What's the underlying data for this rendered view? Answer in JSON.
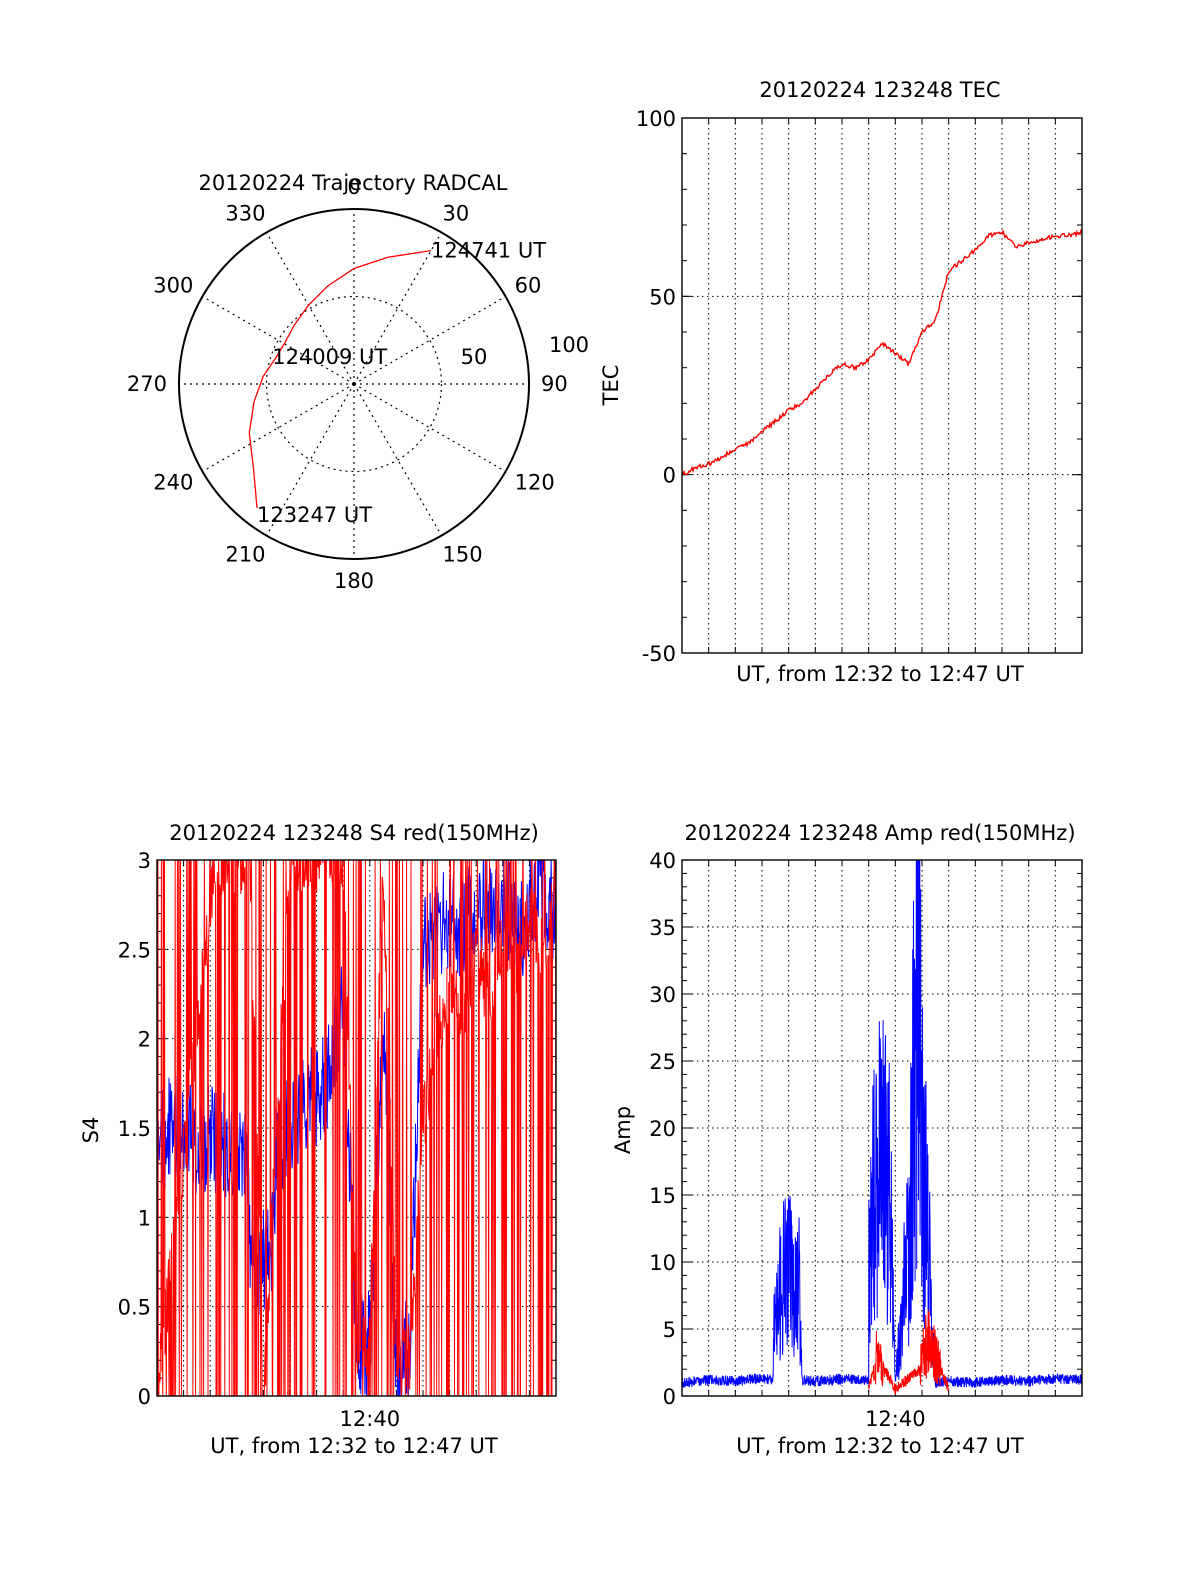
{
  "chart_data": [
    {
      "type": "polar",
      "title": "20120224 Trajectory RADCAL",
      "azimuth_labels": [
        "0",
        "30",
        "60",
        "90",
        "120",
        "150",
        "180",
        "210",
        "240",
        "270",
        "300",
        "330"
      ],
      "elevation_labels": [
        "50",
        "100"
      ],
      "rlim": [
        0,
        100
      ],
      "grid": true,
      "colors": {
        "track": "#ff0000"
      },
      "annotations": [
        {
          "text": "124741 UT",
          "az": 30,
          "r": 88
        },
        {
          "text": "124009 UT",
          "az": 289,
          "r": 47
        },
        {
          "text": "123247 UT",
          "az": 218,
          "r": 90
        }
      ],
      "track": [
        [
          30,
          88
        ],
        [
          15,
          75
        ],
        [
          0,
          66
        ],
        [
          -15,
          58
        ],
        [
          -30,
          52
        ],
        [
          -45,
          48
        ],
        [
          -60,
          46
        ],
        [
          -71,
          47
        ],
        [
          -85,
          52
        ],
        [
          -100,
          58
        ],
        [
          -115,
          66
        ],
        [
          -130,
          75
        ],
        [
          -142,
          90
        ]
      ]
    },
    {
      "type": "line",
      "title": "20120224 123248 TEC",
      "xlabel": "UT, from 12:32 to 12:47 UT",
      "ylabel": "TEC",
      "xlim": [
        0,
        15
      ],
      "ylim": [
        -50,
        100
      ],
      "yticks": [
        "-50",
        "0",
        "50",
        "100"
      ],
      "x_unit": "minutes after 12:32",
      "grid": true,
      "colors": {
        "tec": "#ff0000"
      },
      "series": [
        {
          "name": "",
          "x": [
            0,
            0.5,
            1,
            1.5,
            2,
            2.5,
            3,
            3.5,
            4,
            4.5,
            5,
            5.5,
            6,
            6.5,
            7,
            7.5,
            8,
            8.5,
            9,
            9.5,
            10,
            10.5,
            11,
            11.5,
            12,
            12.5,
            13,
            13.5,
            14,
            14.5,
            15
          ],
          "values": [
            0,
            2,
            3,
            5,
            7,
            9,
            12,
            15,
            18,
            20,
            24,
            28,
            31,
            30,
            32,
            37,
            34,
            31,
            40,
            43,
            57,
            60,
            63,
            67,
            68,
            64,
            65,
            66,
            67,
            67,
            68
          ]
        }
      ]
    },
    {
      "type": "line",
      "title": "20120224 123248 S4 red(150MHz)",
      "xlabel": "UT, from 12:32 to 12:47 UT",
      "ylabel": "S4",
      "xlim": [
        0,
        15
      ],
      "ylim": [
        0,
        3
      ],
      "yticks": [
        "0",
        "0.5",
        "1",
        "1.5",
        "2",
        "2.5",
        "3"
      ],
      "xticks": [
        {
          "x": 8,
          "label": "12:40"
        }
      ],
      "grid": true,
      "colors": {
        "red": "#ff0000",
        "blue": "#0000ff"
      },
      "series": [
        {
          "name": "",
          "color": "blue",
          "x": [
            0,
            0.5,
            1,
            1.5,
            2,
            2.5,
            3,
            3.4,
            3.5,
            4,
            4.3,
            4.5,
            5,
            5.5,
            6,
            6.5,
            7,
            7.5,
            8,
            8.5,
            9,
            9.5,
            10,
            10.5,
            11,
            11.5,
            12,
            12.5,
            13,
            13.5,
            14,
            14.5,
            15
          ],
          "values": [
            1.4,
            1.5,
            1.5,
            1.4,
            1.45,
            1.4,
            1.35,
            1.4,
            0.75,
            0.75,
            0.75,
            1.4,
            1.5,
            1.6,
            1.7,
            1.8,
            2.2,
            0.3,
            0.3,
            2.1,
            0.2,
            0.25,
            2.5,
            2.6,
            2.7,
            2.6,
            2.8,
            2.7,
            2.8,
            2.6,
            2.7,
            2.8,
            2.7
          ]
        },
        {
          "name": "",
          "color": "red",
          "x": [
            0,
            2.2,
            3.5,
            4,
            5,
            5.5,
            6,
            6.5,
            7,
            7.5,
            8,
            8.5,
            9,
            9.5,
            10,
            10.5,
            11,
            11.5,
            12,
            12.5,
            13,
            13.5,
            14,
            14.5,
            15
          ],
          "values": [
            0,
            3,
            3,
            0,
            3,
            3,
            3,
            3,
            3,
            0.3,
            0.3,
            3,
            0.2,
            0.2,
            1.5,
            2,
            2.3,
            2.1,
            2.5,
            2.2,
            2.6,
            2.4,
            2.7,
            2.5,
            2.8
          ]
        }
      ]
    },
    {
      "type": "line",
      "title": "20120224 123248 Amp red(150MHz)",
      "xlabel": "UT, from 12:32 to 12:47 UT",
      "ylabel": "Amp",
      "xlim": [
        0,
        15
      ],
      "ylim": [
        0,
        40
      ],
      "yticks": [
        "0",
        "5",
        "10",
        "15",
        "20",
        "25",
        "30",
        "35",
        "40"
      ],
      "xticks": [
        {
          "x": 8,
          "label": "12:40"
        }
      ],
      "grid": true,
      "colors": {
        "red": "#ff0000",
        "blue": "#0000ff"
      },
      "series": [
        {
          "name": "",
          "color": "blue",
          "x": [
            0,
            1,
            2,
            3,
            3.4,
            3.5,
            4,
            4.4,
            4.5,
            5,
            6,
            7,
            7,
            7.5,
            7.8,
            8,
            8.5,
            8.9,
            9,
            9.5,
            10,
            11,
            12,
            13,
            14,
            15
          ],
          "values": [
            1,
            1.2,
            1.1,
            1.3,
            1.2,
            8,
            9,
            8,
            1.2,
            1.1,
            1.3,
            1.2,
            12,
            19,
            15,
            1,
            12,
            35,
            20,
            1,
            1.1,
            1,
            1.2,
            1.1,
            1.3,
            1.2
          ]
        },
        {
          "name": "",
          "color": "red",
          "x": [
            7,
            7.3,
            7.6,
            8,
            8.9,
            9.2,
            9.5,
            10
          ],
          "values": [
            0.5,
            3,
            2,
            0.5,
            2,
            4,
            3,
            0.5
          ]
        }
      ]
    }
  ]
}
